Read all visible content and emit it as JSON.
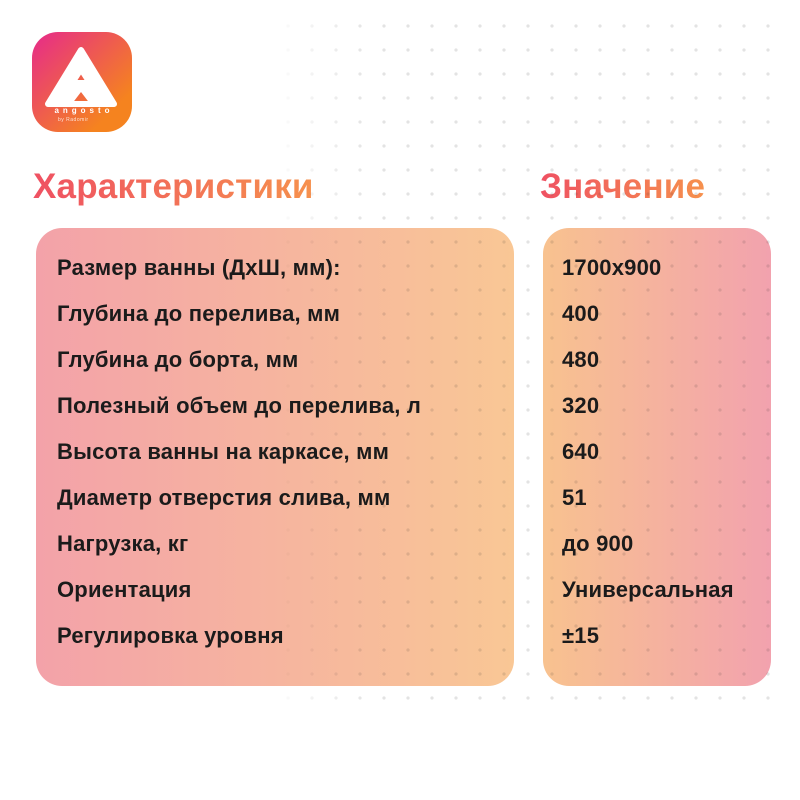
{
  "logo": {
    "brand": "angosto",
    "sub_brand": "by Radomir",
    "mark": "letter-A-triangle"
  },
  "headers": {
    "left": "Характеристики",
    "right": "Значение"
  },
  "rows": [
    {
      "label": "Размер ванны (ДхШ, мм):",
      "value": "1700x900"
    },
    {
      "label": "Глубина до перелива, мм",
      "value": "400"
    },
    {
      "label": "Глубина до борта, мм",
      "value": "480"
    },
    {
      "label": "Полезный объем до перелива, л",
      "value": "320"
    },
    {
      "label": "Высота ванны на каркасе, мм",
      "value": "640"
    },
    {
      "label": "Диаметр отверстия слива, мм",
      "value": "51"
    },
    {
      "label": "Нагрузка, кг",
      "value": "до 900"
    },
    {
      "label": "Ориентация",
      "value": "Универсальная"
    },
    {
      "label": "Регулировка уровня",
      "value": "±15"
    }
  ],
  "colors": {
    "heading-from": "#ef5162",
    "heading-to": "#f6914d",
    "card-left-from": "#f3a2a9",
    "card-left-to": "#f9c795",
    "card-right-from": "#f8c28f",
    "card-right-to": "#f2a2ae",
    "logo-from": "#e62a8b",
    "logo-to": "#f5831f",
    "text-dark": "#1b1b1b"
  }
}
